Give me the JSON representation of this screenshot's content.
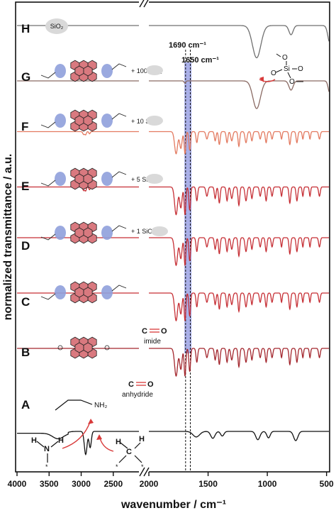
{
  "chart_data": {
    "type": "line",
    "xlabel": "wavenumber / cm⁻¹",
    "ylabel": "normalized transmittance / a.u.",
    "x_ticks": [
      4000,
      3500,
      3000,
      2500,
      2000,
      1500,
      1000,
      500
    ],
    "x_ranges": [
      [
        4000,
        2100
      ],
      [
        2000,
        480
      ]
    ],
    "axis_break": "//",
    "highlight_band": [
      1700,
      1640
    ],
    "reference_lines": [
      {
        "x": 1690,
        "label": "1690 cm⁻¹"
      },
      {
        "x": 1650,
        "label": "1650 cm⁻¹"
      }
    ],
    "series": [
      {
        "name": "A",
        "label": "NH₂",
        "color": "#111111",
        "baseline": 0.08
      },
      {
        "name": "B",
        "color": "#a3262d",
        "baseline": 0.26
      },
      {
        "name": "C",
        "color": "#c62f35",
        "baseline": 0.38
      },
      {
        "name": "D",
        "color": "#c62f35",
        "baseline": 0.5,
        "additive": "+ 1 SiO₂"
      },
      {
        "name": "E",
        "color": "#c62f35",
        "baseline": 0.61,
        "additive": "+ 5 SiO₂"
      },
      {
        "name": "F",
        "color": "#e37a60",
        "baseline": 0.73,
        "additive": "+ 10 SiO₂"
      },
      {
        "name": "G",
        "color": "#8a6a63",
        "baseline": 0.84,
        "additive": "+ 100 SiO₂"
      },
      {
        "name": "H",
        "color": "#707070",
        "baseline": 0.96,
        "label": "SiO₂"
      }
    ],
    "annotations": [
      {
        "text": "C",
        "sub": "imide",
        "near_x": 1700
      },
      {
        "text": "C",
        "sub": "anhydride",
        "near_x": 1770
      }
    ]
  },
  "labels": {
    "imide": "imide",
    "anhydride": "anhydride",
    "co_c": "C",
    "co_o": "O",
    "amine_n": "N",
    "amine_h1": "H",
    "amine_h2": "H",
    "ch2_c": "C",
    "ch2_h1": "H",
    "ch2_h2": "H",
    "si": "Si",
    "o": "O"
  },
  "colors": {
    "band": "#8e96e0",
    "perylene_core": "#d9797f",
    "imide_highlight": "#8fa0dc",
    "sio2_bubble": "#d9d9d9",
    "arrow": "#d83a3a"
  }
}
